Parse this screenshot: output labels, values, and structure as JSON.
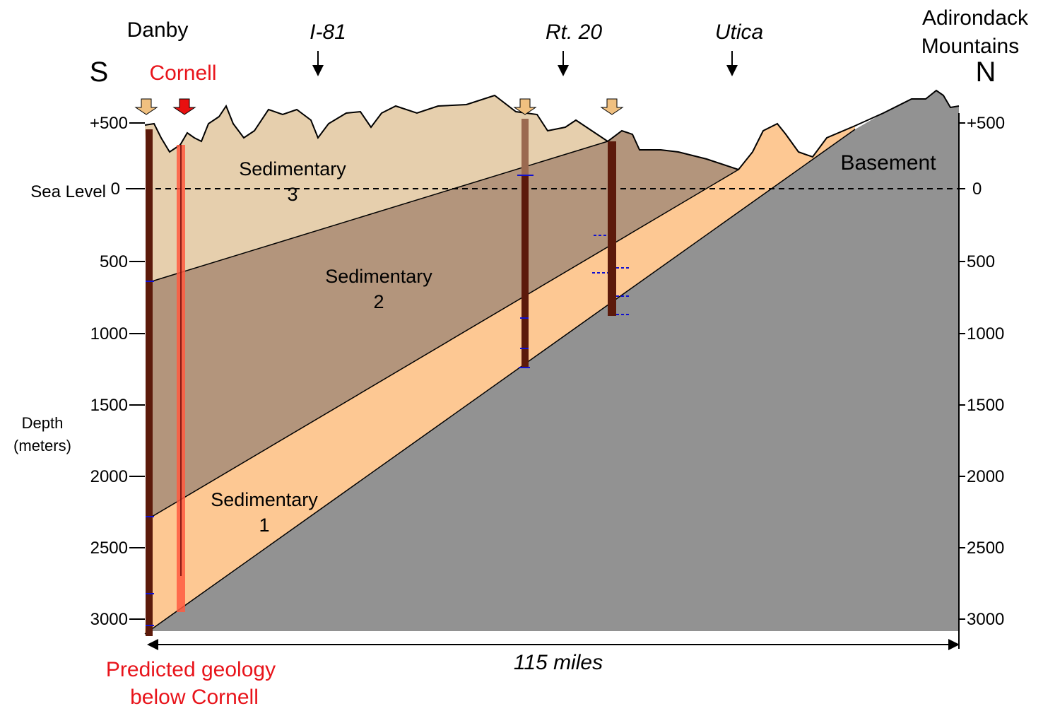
{
  "labels": {
    "south": "S",
    "north": "N",
    "danby": "Danby",
    "cornell": "Cornell",
    "i81": "I-81",
    "rt20": "Rt. 20",
    "utica": "Utica",
    "adirondack": [
      "Adirondack",
      "Mountains"
    ],
    "sea_level": "Sea Level",
    "depth": [
      "Depth",
      "(meters)"
    ],
    "distance": "115 miles",
    "predicted": [
      "Predicted geology",
      "below Cornell"
    ]
  },
  "units": {
    "sedimentary_3": [
      "Sedimentary",
      "3"
    ],
    "sedimentary_2": [
      "Sedimentary",
      "2"
    ],
    "sedimentary_1": [
      "Sedimentary",
      "1"
    ],
    "basement": "Basement"
  },
  "depth_axis": [
    "+500",
    "0",
    "500",
    "1000",
    "1500",
    "2000",
    "2500",
    "3000"
  ]
}
